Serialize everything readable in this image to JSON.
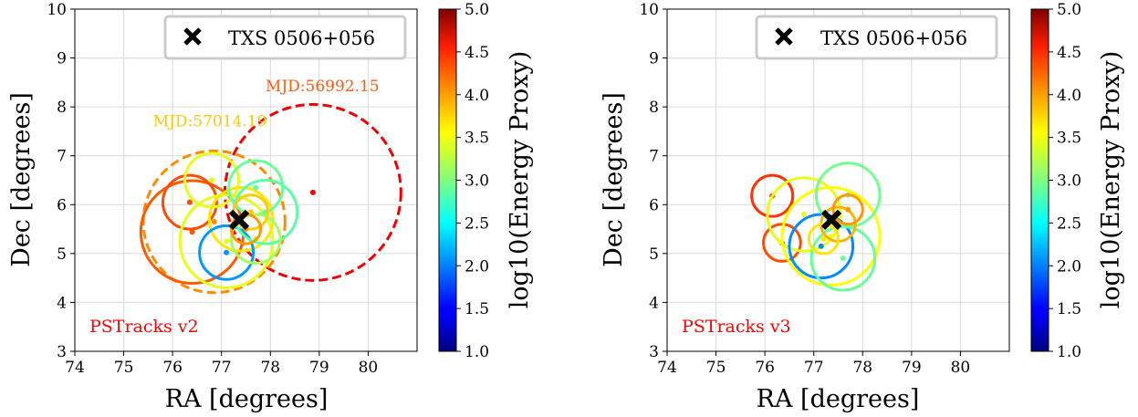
{
  "chart_data": [
    {
      "type": "scatter",
      "panel_label": "PSTracks v2",
      "xlabel": "RA [degrees]",
      "ylabel": "Dec [degrees]",
      "xlim": [
        74,
        81
      ],
      "ylim": [
        3,
        10
      ],
      "xticks": [
        "74",
        "75",
        "76",
        "77",
        "78",
        "79",
        "80"
      ],
      "yticks": [
        "3",
        "4",
        "5",
        "6",
        "7",
        "8",
        "9",
        "10"
      ],
      "grid": true,
      "legend": {
        "label": "TXS 0506+056",
        "placement": "top-right"
      },
      "source": {
        "ra": 77.36,
        "dec": 5.69
      },
      "colorbar": {
        "label": "log10(Energy Proxy)",
        "range": [
          1.0,
          5.0
        ],
        "ticks": [
          "1.0",
          "1.5",
          "2.0",
          "2.5",
          "3.0",
          "3.5",
          "4.0",
          "4.5",
          "5.0"
        ]
      },
      "annotations": [
        {
          "text": "MJD:56992.15",
          "ra": 77.9,
          "dec": 8.32,
          "color": "#ff5a10"
        },
        {
          "text": "MJD:57014.19",
          "ra": 75.6,
          "dec": 7.6,
          "color": "#ffc800"
        }
      ],
      "events": [
        {
          "ra": 78.87,
          "dec": 6.25,
          "radius": 1.8,
          "energy": 4.55,
          "dashed": true
        },
        {
          "ra": 76.85,
          "dec": 5.65,
          "radius": 1.45,
          "energy": 3.95,
          "dashed": true
        },
        {
          "ra": 76.4,
          "dec": 5.44,
          "radius": 1.05,
          "energy": 4.15,
          "dashed": false
        },
        {
          "ra": 76.35,
          "dec": 6.05,
          "radius": 0.55,
          "energy": 4.2,
          "dashed": false
        },
        {
          "ra": 76.8,
          "dec": 6.5,
          "radius": 0.55,
          "energy": 3.4,
          "dashed": false
        },
        {
          "ra": 77.1,
          "dec": 5.25,
          "radius": 0.95,
          "energy": 3.4,
          "dashed": false
        },
        {
          "ra": 77.4,
          "dec": 5.7,
          "radius": 0.65,
          "energy": 3.6,
          "dashed": false
        },
        {
          "ra": 77.1,
          "dec": 5.02,
          "radius": 0.55,
          "energy": 2.1,
          "dashed": false
        },
        {
          "ra": 77.7,
          "dec": 6.35,
          "radius": 0.55,
          "energy": 2.9,
          "dashed": false
        },
        {
          "ra": 77.9,
          "dec": 5.85,
          "radius": 0.65,
          "energy": 2.85,
          "dashed": false
        },
        {
          "ra": 77.7,
          "dec": 5.3,
          "radius": 0.5,
          "energy": 3.15,
          "dashed": false
        },
        {
          "ra": 77.6,
          "dec": 5.85,
          "radius": 0.35,
          "energy": 3.7,
          "dashed": false
        },
        {
          "ra": 77.5,
          "dec": 5.5,
          "radius": 0.3,
          "energy": 3.9,
          "dashed": false
        }
      ]
    },
    {
      "type": "scatter",
      "panel_label": "PSTracks v3",
      "xlabel": "RA [degrees]",
      "ylabel": "Dec [degrees]",
      "xlim": [
        74,
        81
      ],
      "ylim": [
        3,
        10
      ],
      "xticks": [
        "74",
        "75",
        "76",
        "77",
        "78",
        "79",
        "80"
      ],
      "yticks": [
        "3",
        "4",
        "5",
        "6",
        "7",
        "8",
        "9",
        "10"
      ],
      "grid": true,
      "legend": {
        "label": "TXS 0506+056",
        "placement": "top-right"
      },
      "source": {
        "ra": 77.36,
        "dec": 5.69
      },
      "colorbar": {
        "label": "log10(Energy Proxy)",
        "range": [
          1.0,
          5.0
        ],
        "ticks": [
          "1.0",
          "1.5",
          "2.0",
          "2.5",
          "3.0",
          "3.5",
          "4.0",
          "4.5",
          "5.0"
        ]
      },
      "annotations": [],
      "events": [
        {
          "ra": 76.15,
          "dec": 6.18,
          "radius": 0.42,
          "energy": 4.3,
          "dashed": false
        },
        {
          "ra": 76.35,
          "dec": 5.22,
          "radius": 0.38,
          "energy": 4.2,
          "dashed": false
        },
        {
          "ra": 76.8,
          "dec": 5.8,
          "radius": 0.75,
          "energy": 3.4,
          "dashed": false
        },
        {
          "ra": 77.35,
          "dec": 5.35,
          "radius": 1.0,
          "energy": 3.5,
          "dashed": false
        },
        {
          "ra": 77.15,
          "dec": 5.15,
          "radius": 0.65,
          "energy": 2.05,
          "dashed": false
        },
        {
          "ra": 77.7,
          "dec": 6.2,
          "radius": 0.65,
          "energy": 2.95,
          "dashed": false
        },
        {
          "ra": 77.6,
          "dec": 4.9,
          "radius": 0.65,
          "energy": 2.9,
          "dashed": false
        },
        {
          "ra": 77.5,
          "dec": 5.6,
          "radius": 0.35,
          "energy": 3.8,
          "dashed": false
        },
        {
          "ra": 77.7,
          "dec": 5.9,
          "radius": 0.3,
          "energy": 3.9,
          "dashed": false
        },
        {
          "ra": 77.2,
          "dec": 5.3,
          "radius": 0.3,
          "energy": 3.6,
          "dashed": false
        }
      ]
    }
  ]
}
